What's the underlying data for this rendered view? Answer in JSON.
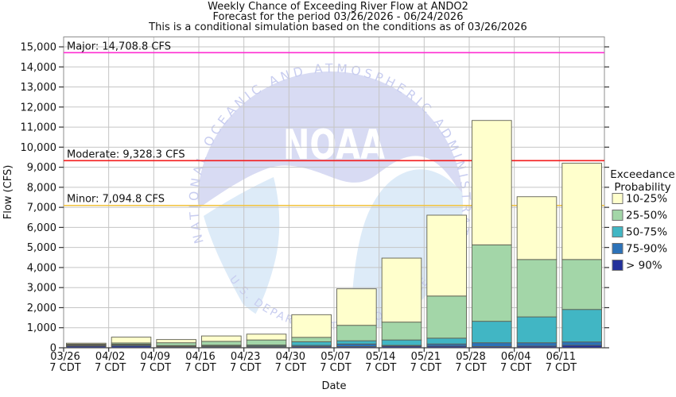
{
  "titles": {
    "line1": "Weekly Chance of Exceeding River Flow at ANDO2",
    "line2": "Forecast for the period 03/26/2026 - 06/24/2026",
    "line3": "This is a conditional simulation based on the conditions as of 03/26/2026"
  },
  "legend": {
    "title_line1": "Exceedance",
    "title_line2": "Probability"
  },
  "watermark": {
    "org": "NOAA",
    "arc_top": "NATIONAL OCEANIC AND ATMOSPHERIC ADMINISTRATION",
    "arc_bottom": "U.S. DEPARTMENT OF COMMERCE"
  },
  "chart_data": {
    "type": "bar",
    "stacked": true,
    "title": "Weekly Chance of Exceeding River Flow at ANDO2",
    "xlabel": "Date",
    "ylabel": "Flow (CFS)",
    "ylim": [
      0,
      15600
    ],
    "y_tick_step": 1000,
    "y_tick_max": 15000,
    "grid": true,
    "legend_position": "right",
    "legend_title": [
      "Exceedance",
      "Probability"
    ],
    "categories": [
      "03/26",
      "04/02",
      "04/09",
      "04/16",
      "04/23",
      "04/30",
      "05/07",
      "05/14",
      "05/21",
      "05/28",
      "06/04",
      "06/11"
    ],
    "x_tick_sublabel": "7 CDT",
    "series": [
      {
        "name": "> 90%",
        "color": "#22309b",
        "values": [
          80,
          90,
          50,
          50,
          50,
          60,
          60,
          80,
          80,
          60,
          80,
          120
        ]
      },
      {
        "name": "75-90%",
        "color": "#2c72b8",
        "values": [
          40,
          50,
          30,
          40,
          40,
          60,
          130,
          40,
          110,
          190,
          170,
          170
        ]
      },
      {
        "name": "50-75%",
        "color": "#41b6c4",
        "values": [
          30,
          40,
          30,
          40,
          50,
          180,
          160,
          270,
          290,
          1070,
          1290,
          1620
        ]
      },
      {
        "name": "25-50%",
        "color": "#a3d6a8",
        "values": [
          30,
          60,
          140,
          190,
          250,
          220,
          770,
          890,
          2100,
          3810,
          2860,
          2490
        ]
      },
      {
        "name": "10-25%",
        "color": "#ffffcc",
        "values": [
          50,
          290,
          160,
          270,
          290,
          1130,
          1820,
          3190,
          4030,
          6200,
          3130,
          4800
        ]
      }
    ],
    "thresholds": [
      {
        "name": "Major",
        "label": "Major: 14,708.8 CFS",
        "value": 14708.8,
        "color": "#ff2ed2"
      },
      {
        "name": "Moderate",
        "label": "Moderate: 9,328.3 CFS",
        "value": 9328.3,
        "color": "#f31b1b"
      },
      {
        "name": "Minor",
        "label": "Minor: 7,094.8 CFS",
        "value": 7094.8,
        "color": "#f2c33e"
      }
    ]
  }
}
